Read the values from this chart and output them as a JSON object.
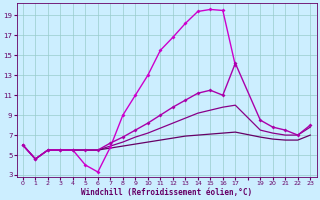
{
  "xlabel": "Windchill (Refroidissement éolien,°C)",
  "background_color": "#cceeff",
  "grid_color": "#99cccc",
  "xmin": -0.5,
  "xmax": 23.5,
  "ymin": 2.8,
  "ymax": 20.2,
  "yticks": [
    3,
    5,
    7,
    9,
    11,
    13,
    15,
    17,
    19
  ],
  "xtick_labels": [
    "0",
    "1",
    "2",
    "3",
    "4",
    "5",
    "6",
    "7",
    "8",
    "9",
    "10",
    "11",
    "12",
    "13",
    "14",
    "15",
    "16",
    "17",
    "",
    "19",
    "20",
    "21",
    "22",
    "23"
  ],
  "xtick_positions": [
    0,
    1,
    2,
    3,
    4,
    5,
    6,
    7,
    8,
    9,
    10,
    11,
    12,
    13,
    14,
    15,
    16,
    17,
    18,
    19,
    20,
    21,
    22,
    23
  ],
  "series": [
    {
      "x": [
        0,
        1,
        2,
        3,
        4,
        5,
        6,
        7,
        8,
        9,
        10,
        11,
        12,
        13,
        14,
        15,
        16,
        17
      ],
      "y": [
        6.0,
        4.6,
        5.5,
        5.5,
        5.5,
        4.0,
        3.3,
        5.8,
        9.0,
        11.0,
        13.0,
        15.5,
        16.8,
        18.2,
        19.4,
        19.6,
        19.5,
        14.0
      ],
      "color": "#cc00cc",
      "marker": "D",
      "markersize": 2.0,
      "linewidth": 1.0
    },
    {
      "x": [
        0,
        1,
        2,
        3,
        4,
        5,
        6,
        7,
        8,
        9,
        10,
        11,
        12,
        13,
        14,
        15,
        16,
        17,
        19,
        20,
        21,
        22,
        23
      ],
      "y": [
        6.0,
        4.6,
        5.5,
        5.5,
        5.5,
        5.5,
        5.5,
        6.2,
        6.8,
        7.5,
        8.2,
        9.0,
        9.8,
        10.5,
        11.2,
        11.5,
        11.0,
        14.2,
        8.5,
        7.8,
        7.5,
        7.0,
        8.0
      ],
      "color": "#aa00aa",
      "marker": "D",
      "markersize": 2.0,
      "linewidth": 1.0
    },
    {
      "x": [
        0,
        1,
        2,
        3,
        4,
        5,
        6,
        7,
        8,
        9,
        10,
        11,
        12,
        13,
        14,
        15,
        16,
        17,
        19,
        20,
        21,
        22,
        23
      ],
      "y": [
        6.0,
        4.6,
        5.5,
        5.5,
        5.5,
        5.5,
        5.5,
        5.9,
        6.3,
        6.8,
        7.2,
        7.7,
        8.2,
        8.7,
        9.2,
        9.5,
        9.8,
        10.0,
        7.5,
        7.2,
        7.0,
        7.0,
        7.8
      ],
      "color": "#880088",
      "marker": null,
      "linewidth": 0.9
    },
    {
      "x": [
        0,
        1,
        2,
        3,
        4,
        5,
        6,
        7,
        8,
        9,
        10,
        11,
        12,
        13,
        14,
        15,
        16,
        17,
        19,
        20,
        21,
        22,
        23
      ],
      "y": [
        6.0,
        4.6,
        5.5,
        5.5,
        5.5,
        5.5,
        5.5,
        5.7,
        5.9,
        6.1,
        6.3,
        6.5,
        6.7,
        6.9,
        7.0,
        7.1,
        7.2,
        7.3,
        6.8,
        6.6,
        6.5,
        6.5,
        7.0
      ],
      "color": "#660066",
      "marker": null,
      "linewidth": 0.9
    }
  ]
}
